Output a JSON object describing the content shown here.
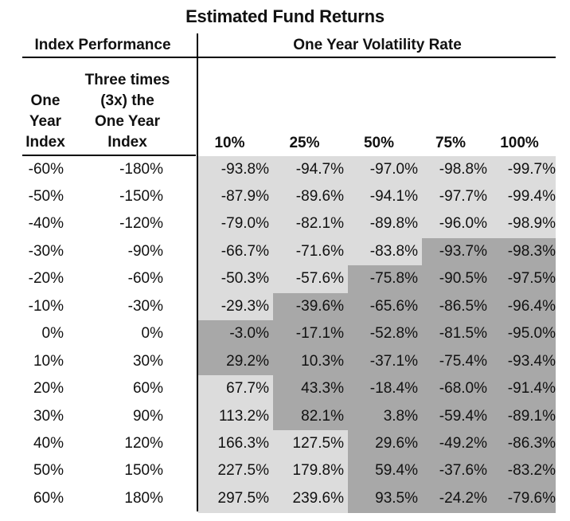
{
  "title": "Estimated Fund Returns",
  "header": {
    "index_performance": "Index Performance",
    "volatility": "One Year Volatility Rate",
    "col_one_year_index": [
      "One",
      "Year",
      "Index"
    ],
    "col_three_times": [
      "Three times",
      "(3x) the",
      "One Year",
      "Index"
    ]
  },
  "volatility_columns": [
    "10%",
    "25%",
    "50%",
    "75%",
    "100%"
  ],
  "rows": [
    {
      "idx": "-60%",
      "x3": "-180%",
      "vals": [
        "-93.8%",
        "-94.7%",
        "-97.0%",
        "-98.8%",
        "-99.7%"
      ],
      "shade": [
        1,
        1,
        1,
        1,
        1
      ]
    },
    {
      "idx": "-50%",
      "x3": "-150%",
      "vals": [
        "-87.9%",
        "-89.6%",
        "-94.1%",
        "-97.7%",
        "-99.4%"
      ],
      "shade": [
        1,
        1,
        1,
        1,
        1
      ]
    },
    {
      "idx": "-40%",
      "x3": "-120%",
      "vals": [
        "-79.0%",
        "-82.1%",
        "-89.8%",
        "-96.0%",
        "-98.9%"
      ],
      "shade": [
        1,
        1,
        1,
        1,
        1
      ]
    },
    {
      "idx": "-30%",
      "x3": "-90%",
      "vals": [
        "-66.7%",
        "-71.6%",
        "-83.8%",
        "-93.7%",
        "-98.3%"
      ],
      "shade": [
        1,
        1,
        1,
        2,
        2
      ]
    },
    {
      "idx": "-20%",
      "x3": "-60%",
      "vals": [
        "-50.3%",
        "-57.6%",
        "-75.8%",
        "-90.5%",
        "-97.5%"
      ],
      "shade": [
        1,
        1,
        2,
        2,
        2
      ]
    },
    {
      "idx": "-10%",
      "x3": "-30%",
      "vals": [
        "-29.3%",
        "-39.6%",
        "-65.6%",
        "-86.5%",
        "-96.4%"
      ],
      "shade": [
        1,
        2,
        2,
        2,
        2
      ]
    },
    {
      "idx": "0%",
      "x3": "0%",
      "vals": [
        "-3.0%",
        "-17.1%",
        "-52.8%",
        "-81.5%",
        "-95.0%"
      ],
      "shade": [
        2,
        2,
        2,
        2,
        2
      ]
    },
    {
      "idx": "10%",
      "x3": "30%",
      "vals": [
        "29.2%",
        "10.3%",
        "-37.1%",
        "-75.4%",
        "-93.4%"
      ],
      "shade": [
        2,
        2,
        2,
        2,
        2
      ]
    },
    {
      "idx": "20%",
      "x3": "60%",
      "vals": [
        "67.7%",
        "43.3%",
        "-18.4%",
        "-68.0%",
        "-91.4%"
      ],
      "shade": [
        1,
        2,
        2,
        2,
        2
      ]
    },
    {
      "idx": "30%",
      "x3": "90%",
      "vals": [
        "113.2%",
        "82.1%",
        "3.8%",
        "-59.4%",
        "-89.1%"
      ],
      "shade": [
        1,
        2,
        2,
        2,
        2
      ]
    },
    {
      "idx": "40%",
      "x3": "120%",
      "vals": [
        "166.3%",
        "127.5%",
        "29.6%",
        "-49.2%",
        "-86.3%"
      ],
      "shade": [
        1,
        1,
        2,
        2,
        2
      ]
    },
    {
      "idx": "50%",
      "x3": "150%",
      "vals": [
        "227.5%",
        "179.8%",
        "59.4%",
        "-37.6%",
        "-83.2%"
      ],
      "shade": [
        1,
        1,
        2,
        2,
        2
      ]
    },
    {
      "idx": "60%",
      "x3": "180%",
      "vals": [
        "297.5%",
        "239.6%",
        "93.5%",
        "-24.2%",
        "-79.6%"
      ],
      "shade": [
        1,
        1,
        2,
        2,
        2
      ]
    }
  ],
  "colors": {
    "light": "#dcdcdc",
    "dark": "#a8a8a8"
  }
}
